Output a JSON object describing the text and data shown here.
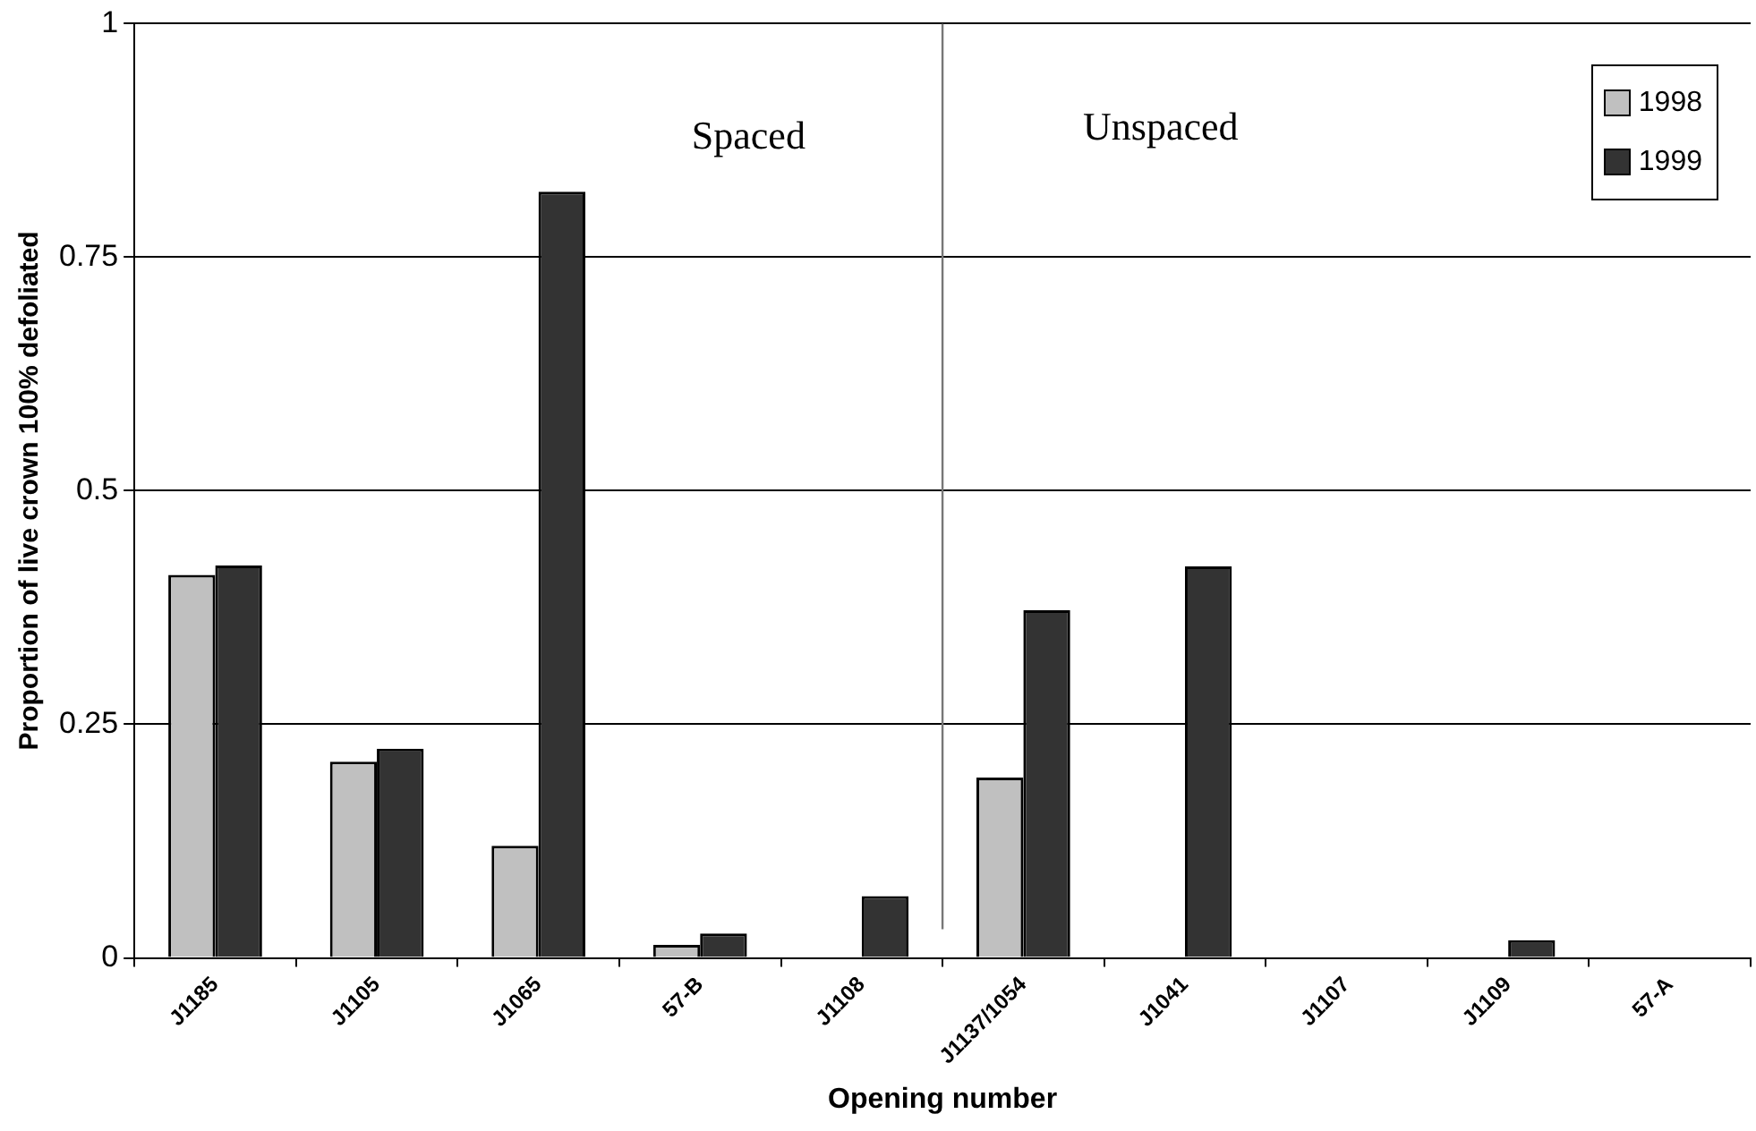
{
  "chart_data": {
    "type": "bar",
    "xlabel": "Opening number",
    "ylabel": "Proportion of live crown 100% defoliated",
    "categories": [
      "J1185",
      "J1105",
      "J1065",
      "57-B",
      "J1108",
      "J1137/1054",
      "J1041",
      "J1107",
      "J1109",
      "57-A"
    ],
    "series": [
      {
        "name": "1998",
        "color": "#c0c0c0",
        "values": [
          0.41,
          0.21,
          0.12,
          0.014,
          0,
          0.193,
          0,
          0,
          0,
          0
        ]
      },
      {
        "name": "1999",
        "color": "#333333",
        "values": [
          0.42,
          0.224,
          0.82,
          0.026,
          0.066,
          0.372,
          0.419,
          0,
          0.019,
          0
        ]
      }
    ],
    "ylim": [
      0,
      1
    ],
    "yticks": [
      0,
      0.25,
      0.5,
      0.75,
      1
    ],
    "grid": "y",
    "legend": "top right",
    "ref_lines": [
      {
        "axis": "x",
        "value": "J1137/1054",
        "color": "#777777"
      }
    ],
    "annotations": [
      "Spaced",
      "Unspaced"
    ]
  }
}
